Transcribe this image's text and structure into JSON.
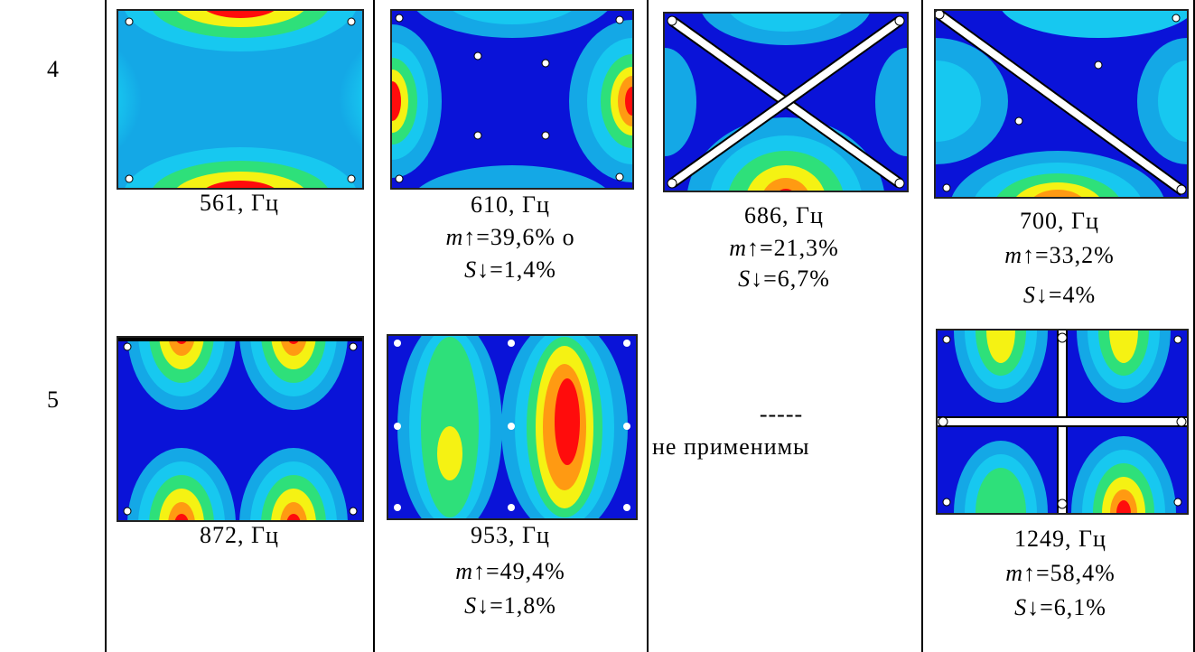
{
  "rows": [
    {
      "number": "4",
      "cells": [
        {
          "freq": "561, Гц"
        },
        {
          "freq": "610, Гц",
          "m": "39,6%",
          "s": "1,4%"
        },
        {
          "freq": "686, Гц",
          "m": "21,3%",
          "s": "6,7%"
        },
        {
          "freq": "700, Гц",
          "m": "33,2%",
          "s": "4%"
        }
      ]
    },
    {
      "number": "5",
      "cells": [
        {
          "freq": "872, Гц"
        },
        {
          "freq": "953, Гц",
          "m": "49,4%",
          "s": "1,8%"
        },
        {
          "dash": "-----",
          "note": "не применимы"
        },
        {
          "freq": "1249, Гц",
          "m": "58,4%",
          "s": "6,1%"
        }
      ]
    }
  ],
  "labels": {
    "m_prefix": "m",
    "m_arrow": "↑=",
    "s_prefix": "S",
    "s_arrow": "↓=",
    "small_circle": "ο"
  },
  "colors": {
    "blue": "#0a13d8",
    "cyan": "#17c8f0",
    "light_blue": "#14a8e6",
    "green": "#2ee07a",
    "yellow": "#f5f213",
    "orange": "#ff9a12",
    "red": "#ff0c0c",
    "border": "#000000"
  }
}
